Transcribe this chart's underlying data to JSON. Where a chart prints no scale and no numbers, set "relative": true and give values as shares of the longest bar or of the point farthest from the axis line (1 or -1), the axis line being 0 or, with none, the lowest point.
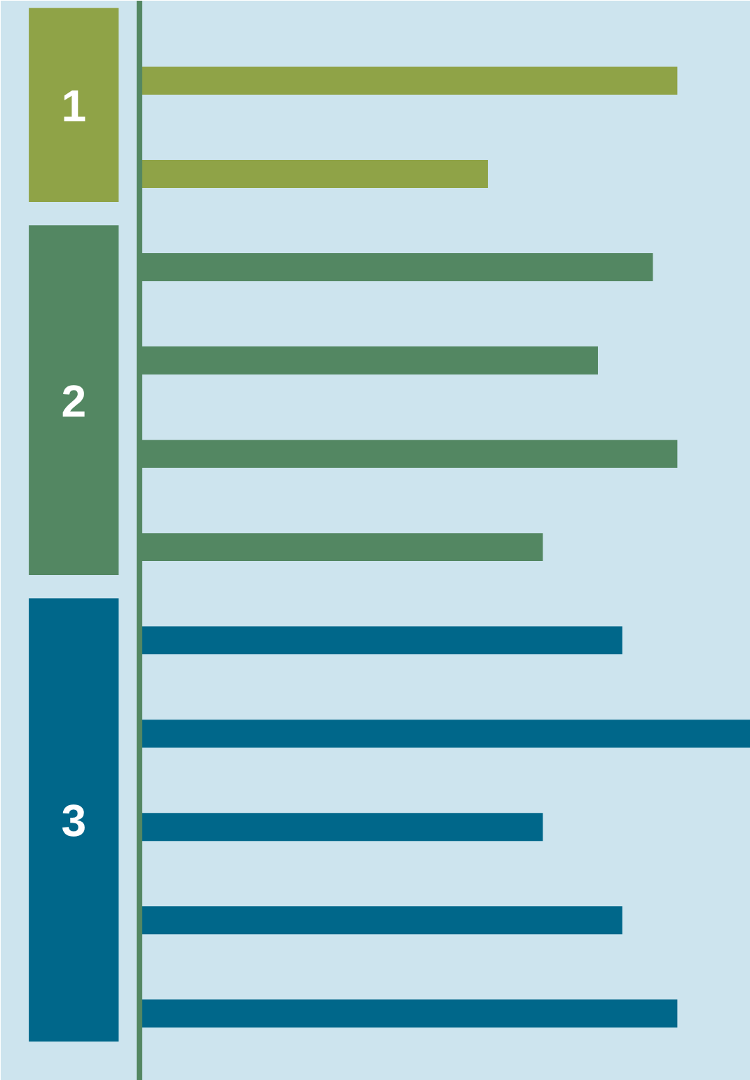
{
  "chart_data": {
    "type": "bar",
    "orientation": "horizontal",
    "relative": true,
    "tick_labels": false,
    "categories": [
      null,
      null,
      null,
      null,
      null,
      null,
      null,
      null,
      null,
      null,
      null
    ],
    "values": [
      0.88,
      0.57,
      0.84,
      0.75,
      0.88,
      0.66,
      0.79,
      1,
      0.66,
      0.79,
      0.88
    ],
    "colors": [
      "#8fa347",
      "#8fa347",
      "#538762",
      "#538762",
      "#538762",
      "#538762",
      "#00678a",
      "#00678a",
      "#00678a",
      "#00678a",
      "#00678a"
    ],
    "annotations": [
      "1",
      "2",
      "3"
    ]
  }
}
